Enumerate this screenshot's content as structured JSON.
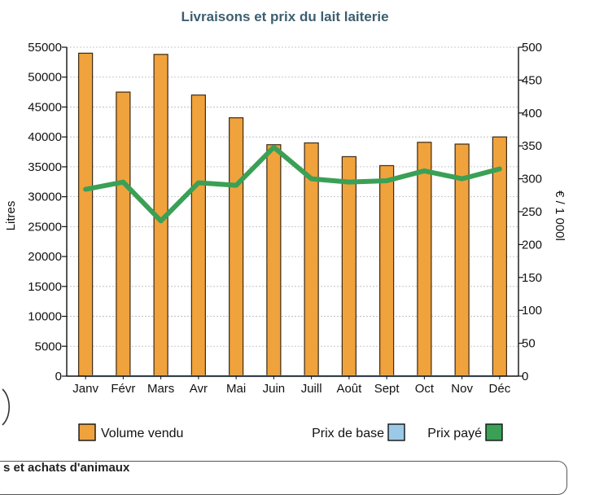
{
  "chart_data": {
    "type": "bar",
    "title": "Livraisons et prix du lait laiterie",
    "categories": [
      "Janv",
      "Févr",
      "Mars",
      "Avr",
      "Mai",
      "Juin",
      "Juill",
      "Août",
      "Sept",
      "Oct",
      "Nov",
      "Déc"
    ],
    "ylabel": "Litres",
    "y2label": "€ / 1 000l",
    "ylim": [
      0,
      55000
    ],
    "y2lim": [
      0,
      500
    ],
    "yticks": [
      0,
      5000,
      10000,
      15000,
      20000,
      25000,
      30000,
      35000,
      40000,
      45000,
      50000,
      55000
    ],
    "y2ticks": [
      0,
      50,
      100,
      150,
      200,
      250,
      300,
      350,
      400,
      450,
      500
    ],
    "grid": true,
    "legend_position": "bottom",
    "series": [
      {
        "name": "Volume vendu",
        "kind": "bar",
        "axis": "left",
        "color": "#f0a23c",
        "values": [
          54000,
          47500,
          53800,
          47000,
          43200,
          38700,
          39000,
          36700,
          35200,
          39100,
          38800,
          40000
        ]
      },
      {
        "name": "Prix de base",
        "kind": "line",
        "axis": "right",
        "color": "#9cc9e8",
        "values": [
          0,
          0,
          0,
          0,
          0,
          0,
          0,
          0,
          0,
          0,
          0,
          0
        ]
      },
      {
        "name": "Prix payé",
        "kind": "line",
        "axis": "right",
        "color": "#3aa055",
        "values": [
          284,
          295,
          236,
          294,
          290,
          348,
          300,
          295,
          297,
          312,
          300,
          315
        ]
      }
    ]
  },
  "footer": {
    "partial_heading": "s et achats d'animaux"
  }
}
